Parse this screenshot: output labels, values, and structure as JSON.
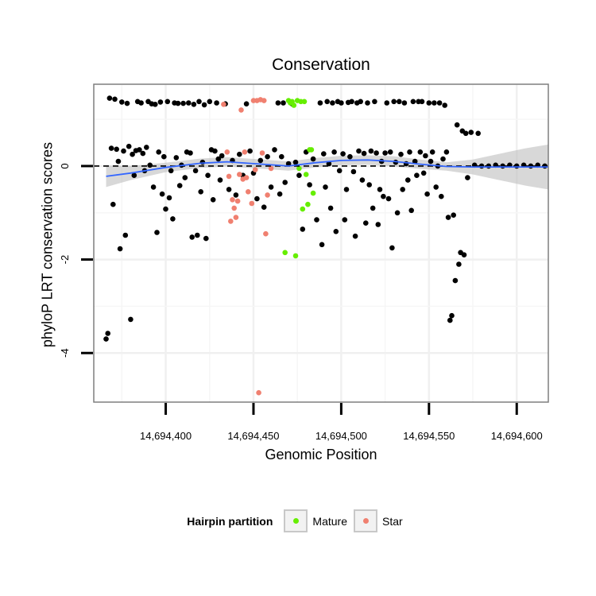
{
  "chart_data": {
    "type": "scatter",
    "title": "Conservation",
    "xlabel": "Genomic Position",
    "ylabel": "phyloP LRT conservation scores",
    "xlim": [
      14694359,
      14694618
    ],
    "ylim": [
      -5.05,
      1.75
    ],
    "x_ticks": [
      14694400,
      14694450,
      14694500,
      14694550,
      14694600
    ],
    "x_tick_labels": [
      "14,694,400",
      "14,694,450",
      "14,694,500",
      "14,694,550",
      "14,694,600"
    ],
    "y_ticks": [
      0,
      -2,
      -4
    ],
    "y_tick_labels": [
      "0",
      "-2",
      "-4"
    ],
    "reference_line": {
      "y": 0,
      "style": "dashed"
    },
    "grid": true,
    "legend": {
      "title": "Hairpin partition",
      "position": "bottom",
      "entries": [
        {
          "label": "Mature",
          "color": "#66ee00"
        },
        {
          "label": "Star",
          "color": "#f08070"
        }
      ]
    },
    "colors": {
      "other": "#8c8c8c",
      "Mature": "#66ee00",
      "Star": "#f08070",
      "smooth": "#3366ff",
      "ribbon": "#bebebe"
    },
    "series": [
      {
        "name": "Other",
        "points": [
          [
            14694366,
            -3.7
          ],
          [
            14694367,
            -3.58
          ],
          [
            14694368,
            1.45
          ],
          [
            14694369,
            0.38
          ],
          [
            14694370,
            -0.82
          ],
          [
            14694371,
            1.43
          ],
          [
            14694372,
            0.36
          ],
          [
            14694373,
            0.1
          ],
          [
            14694374,
            -1.77
          ],
          [
            14694375,
            1.37
          ],
          [
            14694376,
            0.32
          ],
          [
            14694377,
            -1.48
          ],
          [
            14694378,
            1.34
          ],
          [
            14694379,
            0.42
          ],
          [
            14694380,
            -3.28
          ],
          [
            14694381,
            0.25
          ],
          [
            14694382,
            -0.2
          ],
          [
            14694383,
            0.33
          ],
          [
            14694384,
            1.38
          ],
          [
            14694385,
            0.35
          ],
          [
            14694386,
            1.35
          ],
          [
            14694387,
            0.27
          ],
          [
            14694388,
            -0.1
          ],
          [
            14694389,
            0.4
          ],
          [
            14694390,
            1.38
          ],
          [
            14694391,
            0.02
          ],
          [
            14694392,
            1.33
          ],
          [
            14694393,
            -0.45
          ],
          [
            14694394,
            1.32
          ],
          [
            14694395,
            -1.42
          ],
          [
            14694396,
            0.3
          ],
          [
            14694397,
            1.37
          ],
          [
            14694398,
            -0.6
          ],
          [
            14694399,
            0.2
          ],
          [
            14694400,
            -0.92
          ],
          [
            14694401,
            1.38
          ],
          [
            14694402,
            -0.68
          ],
          [
            14694403,
            -0.1
          ],
          [
            14694404,
            -1.13
          ],
          [
            14694405,
            1.35
          ],
          [
            14694406,
            0.18
          ],
          [
            14694407,
            1.34
          ],
          [
            14694408,
            -0.42
          ],
          [
            14694409,
            0.02
          ],
          [
            14694410,
            1.34
          ],
          [
            14694411,
            -0.25
          ],
          [
            14694412,
            0.3
          ],
          [
            14694413,
            1.35
          ],
          [
            14694414,
            0.28
          ],
          [
            14694415,
            -1.52
          ],
          [
            14694416,
            1.32
          ],
          [
            14694417,
            -0.1
          ],
          [
            14694418,
            -1.48
          ],
          [
            14694419,
            1.38
          ],
          [
            14694420,
            -0.55
          ],
          [
            14694421,
            0.08
          ],
          [
            14694422,
            1.31
          ],
          [
            14694423,
            -1.55
          ],
          [
            14694424,
            -0.2
          ],
          [
            14694425,
            1.38
          ],
          [
            14694426,
            0.35
          ],
          [
            14694427,
            -0.72
          ],
          [
            14694428,
            0.32
          ],
          [
            14694429,
            1.35
          ],
          [
            14694430,
            0.15
          ],
          [
            14694431,
            -0.3
          ],
          [
            14694432,
            0.22
          ],
          [
            14694434,
            1.33
          ],
          [
            14694436,
            -0.5
          ],
          [
            14694438,
            0.12
          ],
          [
            14694440,
            -0.62
          ],
          [
            14694442,
            0.25
          ],
          [
            14694444,
            -0.2
          ],
          [
            14694446,
            1.33
          ],
          [
            14694448,
            0.32
          ],
          [
            14694450,
            -0.15
          ],
          [
            14694452,
            -0.7
          ],
          [
            14694454,
            0.12
          ],
          [
            14694456,
            -0.88
          ],
          [
            14694458,
            0.2
          ],
          [
            14694460,
            -0.45
          ],
          [
            14694462,
            0.35
          ],
          [
            14694464,
            1.35
          ],
          [
            14694465,
            -0.6
          ],
          [
            14694466,
            0.2
          ],
          [
            14694467,
            1.35
          ],
          [
            14694468,
            -0.35
          ],
          [
            14694470,
            0.05
          ],
          [
            14694472,
            1.33
          ],
          [
            14694474,
            0.08
          ],
          [
            14694476,
            -0.2
          ],
          [
            14694478,
            -1.35
          ],
          [
            14694480,
            0.3
          ],
          [
            14694482,
            -0.4
          ],
          [
            14694484,
            0.15
          ],
          [
            14694486,
            -1.15
          ],
          [
            14694488,
            1.35
          ],
          [
            14694489,
            -1.68
          ],
          [
            14694490,
            0.26
          ],
          [
            14694491,
            -0.45
          ],
          [
            14694492,
            1.38
          ],
          [
            14694493,
            0.05
          ],
          [
            14694494,
            -0.9
          ],
          [
            14694495,
            1.35
          ],
          [
            14694496,
            0.3
          ],
          [
            14694497,
            -1.4
          ],
          [
            14694498,
            1.38
          ],
          [
            14694499,
            -0.1
          ],
          [
            14694500,
            1.35
          ],
          [
            14694501,
            0.26
          ],
          [
            14694502,
            -1.15
          ],
          [
            14694503,
            -0.5
          ],
          [
            14694504,
            1.36
          ],
          [
            14694505,
            0.2
          ],
          [
            14694506,
            1.38
          ],
          [
            14694507,
            -0.12
          ],
          [
            14694508,
            -1.5
          ],
          [
            14694509,
            1.35
          ],
          [
            14694510,
            0.32
          ],
          [
            14694511,
            1.38
          ],
          [
            14694512,
            -0.3
          ],
          [
            14694513,
            0.27
          ],
          [
            14694514,
            -1.22
          ],
          [
            14694515,
            1.35
          ],
          [
            14694516,
            -0.4
          ],
          [
            14694517,
            0.32
          ],
          [
            14694518,
            -0.9
          ],
          [
            14694519,
            1.38
          ],
          [
            14694520,
            0.28
          ],
          [
            14694521,
            -1.25
          ],
          [
            14694522,
            -0.5
          ],
          [
            14694523,
            0.1
          ],
          [
            14694524,
            -0.65
          ],
          [
            14694525,
            0.28
          ],
          [
            14694526,
            1.35
          ],
          [
            14694527,
            -0.7
          ],
          [
            14694528,
            0.3
          ],
          [
            14694529,
            -1.75
          ],
          [
            14694530,
            1.38
          ],
          [
            14694531,
            0.08
          ],
          [
            14694532,
            -1.0
          ],
          [
            14694533,
            1.38
          ],
          [
            14694534,
            0.25
          ],
          [
            14694535,
            -0.5
          ],
          [
            14694536,
            1.35
          ],
          [
            14694537,
            0.05
          ],
          [
            14694538,
            -0.3
          ],
          [
            14694539,
            0.3
          ],
          [
            14694540,
            -0.95
          ],
          [
            14694541,
            1.38
          ],
          [
            14694542,
            0.1
          ],
          [
            14694543,
            -0.2
          ],
          [
            14694544,
            1.38
          ],
          [
            14694545,
            0.3
          ],
          [
            14694546,
            1.38
          ],
          [
            14694547,
            -0.15
          ],
          [
            14694548,
            0.22
          ],
          [
            14694549,
            -0.6
          ],
          [
            14694550,
            1.35
          ],
          [
            14694551,
            0.1
          ],
          [
            14694552,
            0.3
          ],
          [
            14694553,
            1.35
          ],
          [
            14694554,
            -0.45
          ],
          [
            14694555,
            0.0
          ],
          [
            14694556,
            1.35
          ],
          [
            14694557,
            -0.65
          ],
          [
            14694558,
            0.15
          ],
          [
            14694559,
            1.3
          ],
          [
            14694560,
            0.3
          ],
          [
            14694561,
            -1.1
          ],
          [
            14694562,
            -3.3
          ],
          [
            14694563,
            -3.2
          ],
          [
            14694564,
            -1.05
          ],
          [
            14694565,
            -2.45
          ],
          [
            14694566,
            0.88
          ],
          [
            14694567,
            -2.1
          ],
          [
            14694568,
            -1.85
          ],
          [
            14694569,
            0.75
          ],
          [
            14694570,
            -1.9
          ],
          [
            14694571,
            0.7
          ],
          [
            14694572,
            -0.25
          ],
          [
            14694574,
            0.72
          ],
          [
            14694576,
            0.02
          ],
          [
            14694578,
            0.7
          ],
          [
            14694580,
            0.0
          ],
          [
            14694584,
            0.0
          ],
          [
            14694588,
            0.02
          ],
          [
            14694592,
            0.0
          ],
          [
            14694596,
            0.02
          ],
          [
            14694600,
            0.0
          ],
          [
            14694604,
            0.02
          ],
          [
            14694608,
            0.0
          ],
          [
            14694612,
            0.02
          ],
          [
            14694616,
            0.0
          ]
        ]
      },
      {
        "name": "Star",
        "points": [
          [
            14694433,
            1.32
          ],
          [
            14694435,
            0.3
          ],
          [
            14694436,
            -0.22
          ],
          [
            14694437,
            -1.18
          ],
          [
            14694438,
            -0.72
          ],
          [
            14694439,
            -0.9
          ],
          [
            14694440,
            -1.1
          ],
          [
            14694441,
            -0.75
          ],
          [
            14694442,
            -0.18
          ],
          [
            14694443,
            1.2
          ],
          [
            14694444,
            -0.28
          ],
          [
            14694445,
            0.3
          ],
          [
            14694446,
            -0.25
          ],
          [
            14694447,
            -0.55
          ],
          [
            14694449,
            -0.8
          ],
          [
            14694450,
            1.4
          ],
          [
            14694451,
            -0.08
          ],
          [
            14694452,
            1.4
          ],
          [
            14694453,
            -4.85
          ],
          [
            14694454,
            1.42
          ],
          [
            14694455,
            0.28
          ],
          [
            14694456,
            1.4
          ],
          [
            14694457,
            -1.45
          ],
          [
            14694458,
            -0.62
          ],
          [
            14694460,
            -0.05
          ]
        ]
      },
      {
        "name": "Mature",
        "points": [
          [
            14694468,
            -1.85
          ],
          [
            14694470,
            1.4
          ],
          [
            14694471,
            1.35
          ],
          [
            14694472,
            1.38
          ],
          [
            14694473,
            1.3
          ],
          [
            14694474,
            -1.92
          ],
          [
            14694475,
            1.4
          ],
          [
            14694476,
            -0.05
          ],
          [
            14694477,
            1.38
          ],
          [
            14694478,
            -0.92
          ],
          [
            14694479,
            1.38
          ],
          [
            14694480,
            -0.18
          ],
          [
            14694481,
            -0.82
          ],
          [
            14694482,
            0.35
          ],
          [
            14694483,
            0.35
          ],
          [
            14694484,
            -0.58
          ]
        ]
      }
    ],
    "smooth": {
      "x": [
        14694366,
        14694380,
        14694400,
        14694420,
        14694435,
        14694455,
        14694470,
        14694485,
        14694500,
        14694515,
        14694530,
        14694545,
        14694560,
        14694575,
        14694590,
        14694605,
        14694618
      ],
      "y": [
        -0.22,
        -0.15,
        -0.03,
        0.06,
        0.09,
        0.04,
        0.0,
        0.07,
        0.12,
        0.13,
        0.1,
        0.04,
        -0.01,
        -0.02,
        -0.02,
        -0.02,
        -0.02
      ],
      "lower": [
        -0.45,
        -0.3,
        -0.13,
        -0.04,
        -0.01,
        -0.06,
        -0.1,
        -0.03,
        0.02,
        0.03,
        -0.01,
        -0.06,
        -0.1,
        -0.18,
        -0.3,
        -0.42,
        -0.5
      ],
      "upper": [
        0.01,
        0.0,
        0.07,
        0.16,
        0.19,
        0.14,
        0.1,
        0.17,
        0.22,
        0.23,
        0.21,
        0.14,
        0.08,
        0.14,
        0.26,
        0.38,
        0.46
      ]
    }
  }
}
